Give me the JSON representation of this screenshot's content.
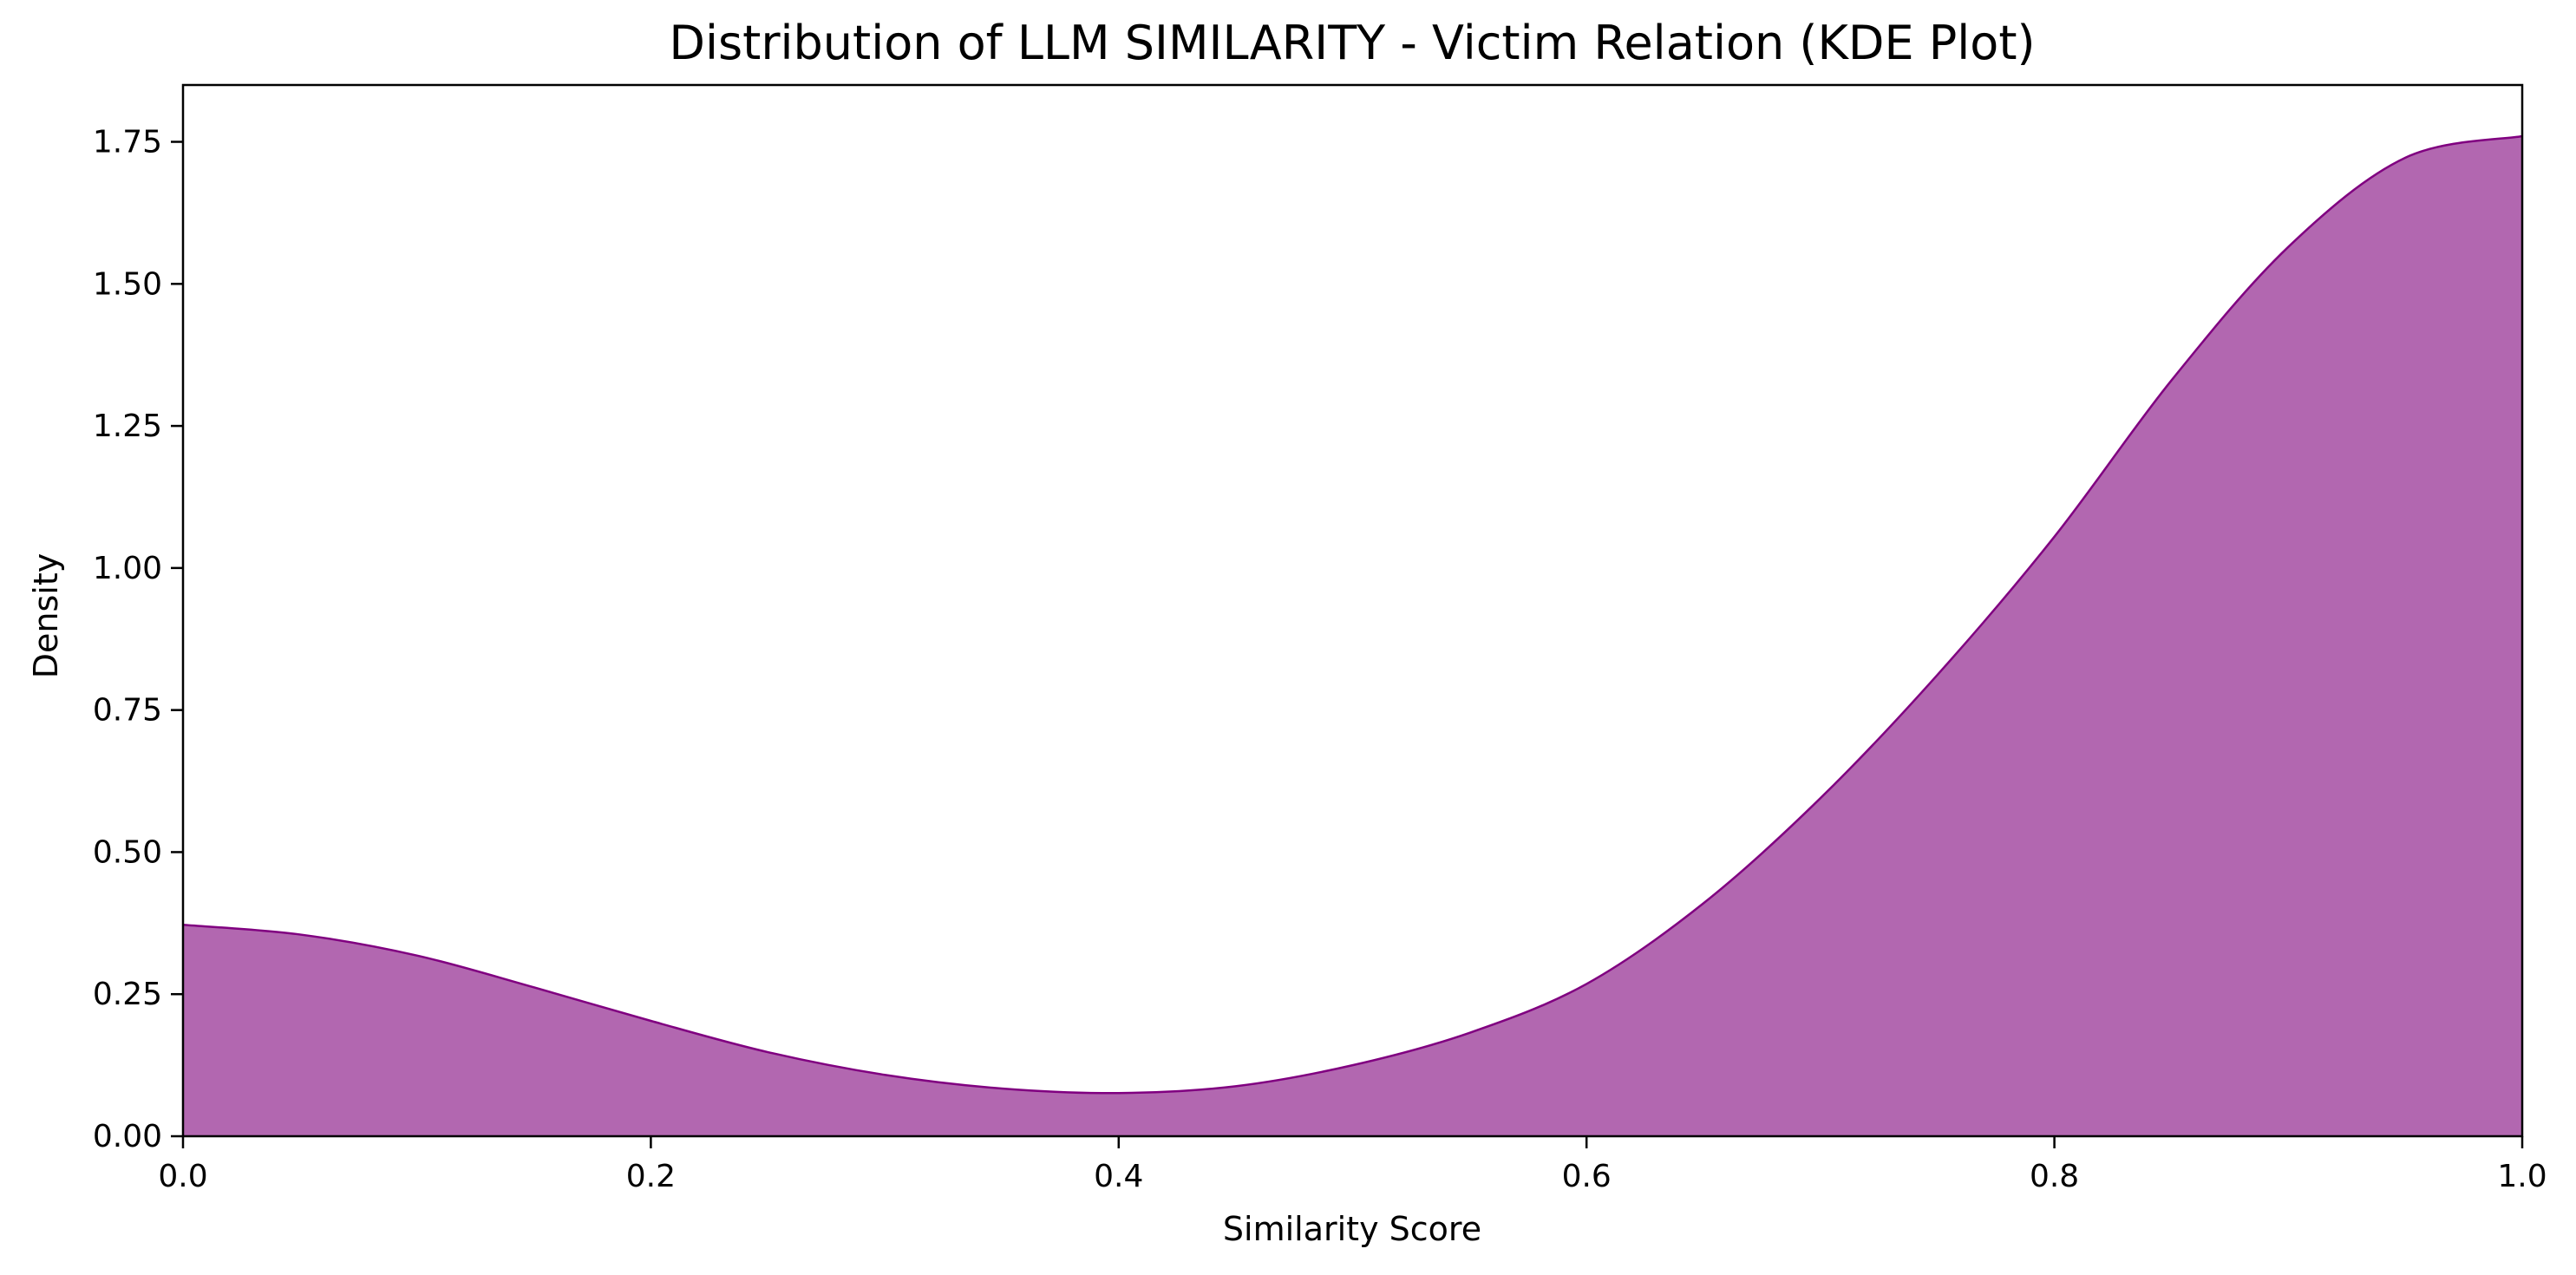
{
  "chart_data": {
    "type": "area",
    "title": "Distribution of LLM SIMILARITY - Victim Relation (KDE Plot)",
    "xlabel": "Similarity Score",
    "ylabel": "Density",
    "xlim": [
      0.0,
      1.0
    ],
    "ylim": [
      0.0,
      1.85
    ],
    "xticks": [
      0.0,
      0.2,
      0.4,
      0.6,
      0.8,
      1.0
    ],
    "xtick_labels": [
      "0.0",
      "0.2",
      "0.4",
      "0.6",
      "0.8",
      "1.0"
    ],
    "yticks": [
      0.0,
      0.25,
      0.5,
      0.75,
      1.0,
      1.25,
      1.5,
      1.75
    ],
    "ytick_labels": [
      "0.00",
      "0.25",
      "0.50",
      "0.75",
      "1.00",
      "1.25",
      "1.50",
      "1.75"
    ],
    "grid": false,
    "fill_color": "#b267b0",
    "line_color": "#800080",
    "series": [
      {
        "x": [
          0.0,
          0.05,
          0.1,
          0.15,
          0.2,
          0.25,
          0.3,
          0.35,
          0.4,
          0.45,
          0.5,
          0.55,
          0.6,
          0.65,
          0.7,
          0.75,
          0.8,
          0.85,
          0.9,
          0.95,
          1.0
        ],
        "y": [
          0.372,
          0.355,
          0.318,
          0.262,
          0.203,
          0.148,
          0.108,
          0.084,
          0.076,
          0.088,
          0.125,
          0.182,
          0.268,
          0.41,
          0.595,
          0.812,
          1.055,
          1.33,
          1.565,
          1.722,
          1.76
        ]
      }
    ]
  }
}
